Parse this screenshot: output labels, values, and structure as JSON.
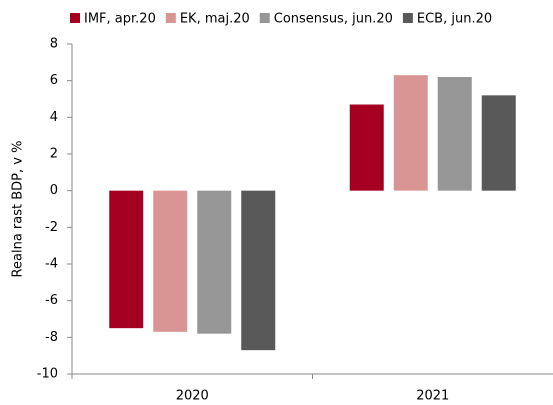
{
  "chart_data": {
    "type": "bar",
    "y_label": "Realna rast BDP, v %",
    "categories": [
      "2020",
      "2021"
    ],
    "series": [
      {
        "name": "IMF, apr.20",
        "color": "#a50021",
        "values": [
          -7.5,
          4.7
        ]
      },
      {
        "name": "EK, maj.20",
        "color": "#d99594",
        "values": [
          -7.7,
          6.3
        ]
      },
      {
        "name": "Consensus, jun.20",
        "color": "#969696",
        "values": [
          -7.8,
          6.2
        ]
      },
      {
        "name": "ECB, jun.20",
        "color": "#595959",
        "values": [
          -8.7,
          5.2
        ]
      }
    ],
    "ylim": [
      -10,
      8
    ],
    "yticks": [
      -10,
      -8,
      -6,
      -4,
      -2,
      0,
      2,
      4,
      6,
      8
    ],
    "grid": false,
    "legend": "top"
  }
}
